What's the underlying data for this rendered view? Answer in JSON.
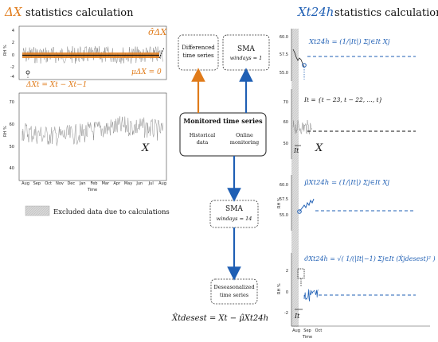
{
  "left_panel": {
    "title_var": "ΔX",
    "title_rest": "statistics calculation",
    "top_plot": {
      "ylabel": "RH %",
      "yticks": [
        "4",
        "2",
        "0",
        "-2",
        "-4"
      ],
      "sigma_label": "σ̂ΔX",
      "mu_label": "μΔX = 0",
      "delta_formula": "ΔXt = Xt − Xt−1"
    },
    "bottom_plot": {
      "ylabel": "RH %",
      "yticks": [
        "70",
        "60",
        "50",
        "40"
      ],
      "xticks": [
        "Aug",
        "Sep",
        "Oct",
        "Nov",
        "Dec",
        "Jan",
        "Feb",
        "Mar",
        "Apr",
        "May",
        "Jun",
        "Jul",
        "Aug"
      ],
      "xlabel": "Time",
      "series_label": "X"
    },
    "legend": "Excluded data due to calculations"
  },
  "middle": {
    "differenced_box": "Differenced time series",
    "sma1_box": {
      "title": "SMA",
      "sub": "windays = 1"
    },
    "monitored_box": {
      "title": "Monitored time series",
      "left": "Historical data",
      "right": "Online monitoring"
    },
    "sma14_box": {
      "title": "SMA",
      "sub": "windays = 14"
    },
    "deseason_box": "Deseasonalized time series",
    "deseason_formula": "X̂tdesest = Xt − μ̂Xt24h"
  },
  "right_panel": {
    "title_var": "Xt24h",
    "title_rest": "statistics calculation",
    "plot1": {
      "yticks": [
        "60.0",
        "57.5",
        "55.0"
      ],
      "formula": "Xt24h = (1/|It|) Σj∈It Xj"
    },
    "plot2": {
      "yticks": [
        "70",
        "60",
        "50"
      ],
      "It_formula": "It = {t − 23, t − 22, ..., t}",
      "It_label": "It",
      "series_label": "X"
    },
    "plot3": {
      "ylabel": "RH %",
      "yticks": [
        "60.0",
        "57.5",
        "55.0"
      ],
      "formula": "μ̂Xt24h = (1/|It|) Σj∈It Xj"
    },
    "plot4": {
      "ylabel": "RH %",
      "yticks": [
        "2",
        "0",
        "-2"
      ],
      "formula": "σ̂Xt24h = √( 1/(|It|−1) Σj∈It (X̂jdesest)² )",
      "It_label": "It",
      "xticks": [
        "Aug",
        "Sep",
        "Oct"
      ],
      "xlabel": "Time"
    }
  },
  "colors": {
    "orange": "#e07b1a",
    "blue": "#1f5fb4",
    "gray": "#9a9a9a"
  }
}
